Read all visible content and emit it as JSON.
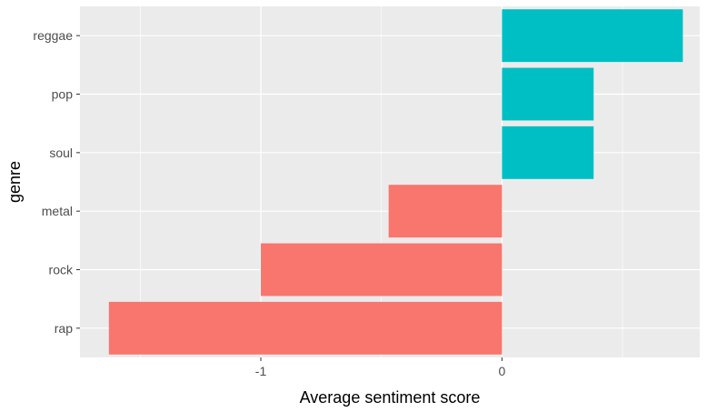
{
  "chart_data": {
    "type": "bar",
    "orientation": "horizontal",
    "categories": [
      "rap",
      "rock",
      "metal",
      "soul",
      "pop",
      "reggae"
    ],
    "values": [
      -1.63,
      -1.0,
      -0.47,
      0.38,
      0.38,
      0.75
    ],
    "xlabel": "Average sentiment score",
    "ylabel": "genre",
    "x_ticks": [
      -1,
      0
    ],
    "x_tick_labels": [
      "-1",
      "0"
    ],
    "xlim": [
      -1.75,
      0.82
    ],
    "grid": true,
    "legend": "none",
    "colors": {
      "positive": "#00bfc4",
      "negative": "#f8766d",
      "panel_background": "#ebebeb",
      "grid_major": "#ffffff",
      "axis_text": "#4d4d4d",
      "tick_mark": "#333333"
    }
  }
}
